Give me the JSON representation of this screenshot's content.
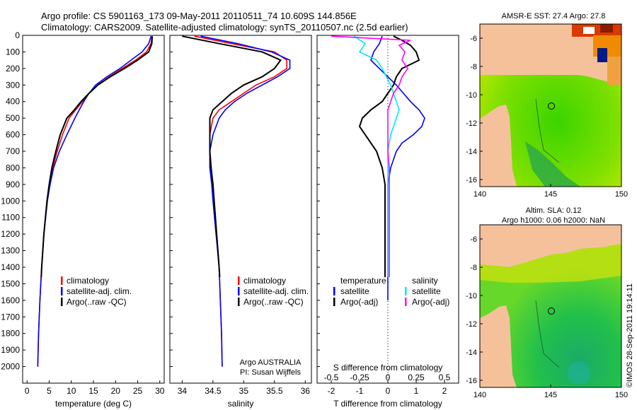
{
  "header": {
    "line1": "Argo profile: CS 5901163_173 09-May-2011 20110511_74 10.609S 144.856E",
    "line2": "Climatology: CARS2009. Satellite-adjusted climatology: synTS_20110507.nc (2.5d earlier)"
  },
  "colors": {
    "climatology": "#ff0000",
    "satellite": "#0000ff",
    "argo": "#000000",
    "sat_s": "#00e5ff",
    "argo_s": "#ff00ff"
  },
  "chart_data": [
    {
      "type": "line",
      "title": "",
      "xlabel": "temperature (deg C)",
      "ylabel": "",
      "xlim": [
        -1,
        31
      ],
      "ylim": [
        2100,
        0
      ],
      "xticks": [
        0,
        5,
        10,
        15,
        20,
        25,
        30
      ],
      "yticks": [
        0,
        100,
        200,
        300,
        400,
        500,
        600,
        700,
        800,
        900,
        1000,
        1100,
        1200,
        1300,
        1400,
        1500,
        1600,
        1700,
        1800,
        1900,
        2000
      ],
      "legend": [
        "climatology",
        "satellite-adj. clim.",
        "Argo(..raw -QC)"
      ],
      "series": [
        {
          "name": "climatology",
          "depth": [
            5,
            50,
            100,
            150,
            200,
            250,
            300,
            350,
            400,
            450,
            500,
            600,
            700,
            800,
            900,
            1000,
            1200,
            1400,
            1600,
            1800,
            2000
          ],
          "values": [
            28.2,
            28.0,
            27.0,
            24.5,
            21.5,
            18.5,
            16.0,
            14.0,
            12.5,
            11.0,
            9.5,
            8.0,
            6.8,
            5.8,
            5.0,
            4.5,
            3.8,
            3.3,
            2.9,
            2.6,
            2.4
          ]
        },
        {
          "name": "satellite-adj. clim.",
          "depth": [
            5,
            50,
            100,
            150,
            200,
            250,
            300,
            350,
            400,
            450,
            500,
            600,
            700,
            800,
            900,
            1000,
            1200,
            1400,
            1600,
            1800,
            2000
          ],
          "values": [
            28.0,
            27.5,
            26.0,
            23.5,
            21.0,
            18.0,
            15.5,
            14.0,
            12.8,
            11.8,
            10.8,
            9.0,
            7.3,
            6.0,
            5.2,
            4.6,
            3.8,
            3.3,
            2.9,
            2.6,
            2.4
          ]
        },
        {
          "name": "Argo(..raw -QC)",
          "depth": [
            5,
            50,
            100,
            150,
            200,
            250,
            300,
            350,
            400,
            450,
            500,
            600,
            700,
            800,
            900,
            1000,
            1200,
            1400,
            1460
          ],
          "values": [
            28.3,
            28.2,
            27.5,
            25.0,
            22.0,
            18.8,
            16.0,
            14.0,
            12.2,
            10.7,
            9.0,
            7.5,
            6.5,
            5.6,
            5.0,
            4.5,
            3.8,
            3.3,
            3.2
          ]
        }
      ]
    },
    {
      "type": "line",
      "title": "",
      "xlabel": "salinity",
      "ylabel": "",
      "xlim": [
        33.8,
        36.1
      ],
      "ylim": [
        2100,
        0
      ],
      "xticks": [
        34,
        34.5,
        35,
        35.5,
        36
      ],
      "xtick_labels": [
        "34",
        "34.5",
        "35",
        "35.5",
        "36"
      ],
      "legend": [
        "climatology",
        "satellite-adj. clim.",
        "Argo(..raw -QC)"
      ],
      "annotation": [
        "Argo AUSTRALIA",
        "PI: Susan Wijffels"
      ],
      "series": [
        {
          "name": "climatology",
          "depth": [
            5,
            50,
            100,
            150,
            200,
            250,
            300,
            350,
            400,
            450,
            500,
            600,
            700,
            800,
            900,
            1000,
            1200,
            1400,
            1600,
            1800,
            2000
          ],
          "values": [
            34.2,
            34.8,
            35.5,
            35.7,
            35.7,
            35.5,
            35.2,
            35.0,
            34.8,
            34.6,
            34.5,
            34.45,
            34.45,
            34.45,
            34.5,
            34.52,
            34.56,
            34.6,
            34.62,
            34.64,
            34.65
          ]
        },
        {
          "name": "satellite-adj. clim.",
          "depth": [
            5,
            50,
            100,
            150,
            200,
            250,
            300,
            350,
            400,
            450,
            500,
            600,
            700,
            800,
            900,
            1000,
            1200,
            1400,
            1600,
            1800,
            2000
          ],
          "values": [
            34.3,
            34.9,
            35.45,
            35.75,
            35.75,
            35.55,
            35.3,
            35.05,
            34.85,
            34.7,
            34.6,
            34.5,
            34.45,
            34.45,
            34.48,
            34.5,
            34.55,
            34.6,
            34.62,
            34.64,
            34.65
          ]
        },
        {
          "name": "Argo(..raw -QC)",
          "depth": [
            5,
            50,
            100,
            150,
            200,
            250,
            300,
            350,
            400,
            450,
            500,
            600,
            700,
            800,
            900,
            1000,
            1200,
            1400,
            1460
          ],
          "values": [
            34.0,
            34.6,
            35.3,
            35.6,
            35.5,
            35.3,
            35.0,
            34.8,
            34.65,
            34.5,
            34.45,
            34.45,
            34.45,
            34.47,
            34.5,
            34.52,
            34.56,
            34.6,
            34.61
          ]
        }
      ]
    },
    {
      "type": "line",
      "title": "",
      "xlabel": "T difference from climatology",
      "xlabel_top": "S difference from climatology",
      "ylabel": "",
      "xlim": [
        -2.5,
        2.5
      ],
      "ylim": [
        2100,
        0
      ],
      "xticks_T": [
        -2,
        -1,
        0,
        1,
        2
      ],
      "xticks_S": [
        "-0.5",
        "-0.25",
        "0",
        "0.25",
        "0.5"
      ],
      "legend_temperature": {
        "heading": "temperature",
        "items": [
          "satellite",
          "Argo(-adj)"
        ]
      },
      "legend_salinity": {
        "heading": "salinity",
        "items": [
          "satellite",
          "Argo(-adj)"
        ]
      },
      "series": [
        {
          "name": "temperature satellite",
          "color": "satellite",
          "depth": [
            5,
            50,
            100,
            150,
            200,
            300,
            400,
            450,
            500,
            550,
            600,
            650,
            700,
            800,
            900,
            1000,
            1200,
            1400,
            1600
          ],
          "values": [
            -0.2,
            -0.3,
            -0.5,
            -0.6,
            -0.3,
            0.3,
            0.8,
            1.1,
            1.3,
            1.2,
            0.9,
            0.5,
            0.3,
            0.1,
            0.0,
            0.0,
            0.0,
            0.0,
            0.0
          ]
        },
        {
          "name": "temperature Argo(-adj)",
          "color": "argo",
          "depth": [
            5,
            30,
            60,
            100,
            150,
            200,
            250,
            300,
            350,
            400,
            450,
            500,
            550,
            600,
            650,
            700,
            800,
            900,
            1000,
            1200,
            1400,
            1460
          ],
          "values": [
            0.2,
            0.5,
            0.8,
            1.0,
            1.1,
            0.5,
            0.3,
            0.2,
            0.0,
            -0.2,
            -0.6,
            -0.9,
            -1.0,
            -0.8,
            -0.6,
            -0.4,
            -0.2,
            -0.1,
            -0.1,
            -0.1,
            -0.1,
            -0.1
          ]
        },
        {
          "name": "salinity satellite",
          "color": "sat_s",
          "depth": [
            5,
            50,
            100,
            150,
            200,
            300,
            400,
            450,
            500,
            550,
            600,
            700,
            800,
            900,
            1000,
            1200,
            1400,
            1460
          ],
          "values": [
            -1.2,
            -0.8,
            -1.0,
            -0.4,
            -0.2,
            0.1,
            0.3,
            0.4,
            0.3,
            0.2,
            0.1,
            0.0,
            0.0,
            0.0,
            0.0,
            0.0,
            0.0,
            0.0
          ]
        },
        {
          "name": "salinity Argo(-adj)",
          "color": "argo_s",
          "depth": [
            5,
            30,
            60,
            100,
            150,
            200,
            250,
            300,
            350,
            400,
            450,
            500,
            600,
            700,
            800,
            900,
            1000,
            1200,
            1400,
            1460
          ],
          "values": [
            -2.0,
            0.8,
            0.4,
            0.6,
            0.5,
            0.7,
            0.5,
            0.4,
            0.2,
            0.1,
            0.0,
            0.0,
            0.0,
            0.0,
            0.05,
            0.05,
            0.05,
            0.05,
            0.05,
            0.05
          ]
        }
      ]
    },
    {
      "type": "heatmap",
      "title": "AMSR-E SST: 27.4 Argo: 27.8",
      "xlim": [
        140,
        150
      ],
      "ylim": [
        -16.5,
        -5
      ],
      "xticks": [
        140,
        145,
        150
      ],
      "yticks": [
        -6,
        -8,
        -10,
        -12,
        -14,
        -16
      ],
      "marker": {
        "lon": 144.856,
        "lat": -10.609
      }
    },
    {
      "type": "heatmap",
      "title": "Altim. SLA: 0.12",
      "subtitle": "Argo h1000: 0.06 h2000: NaN",
      "xlim": [
        140,
        150
      ],
      "ylim": [
        -16.5,
        -5
      ],
      "xticks": [
        140,
        145,
        150
      ],
      "yticks": [
        -6,
        -8,
        -10,
        -12,
        -14,
        -16
      ],
      "marker": {
        "lon": 144.856,
        "lat": -10.609
      }
    }
  ],
  "credit": "©IMOS 28-Sep-2011 19:14:11"
}
